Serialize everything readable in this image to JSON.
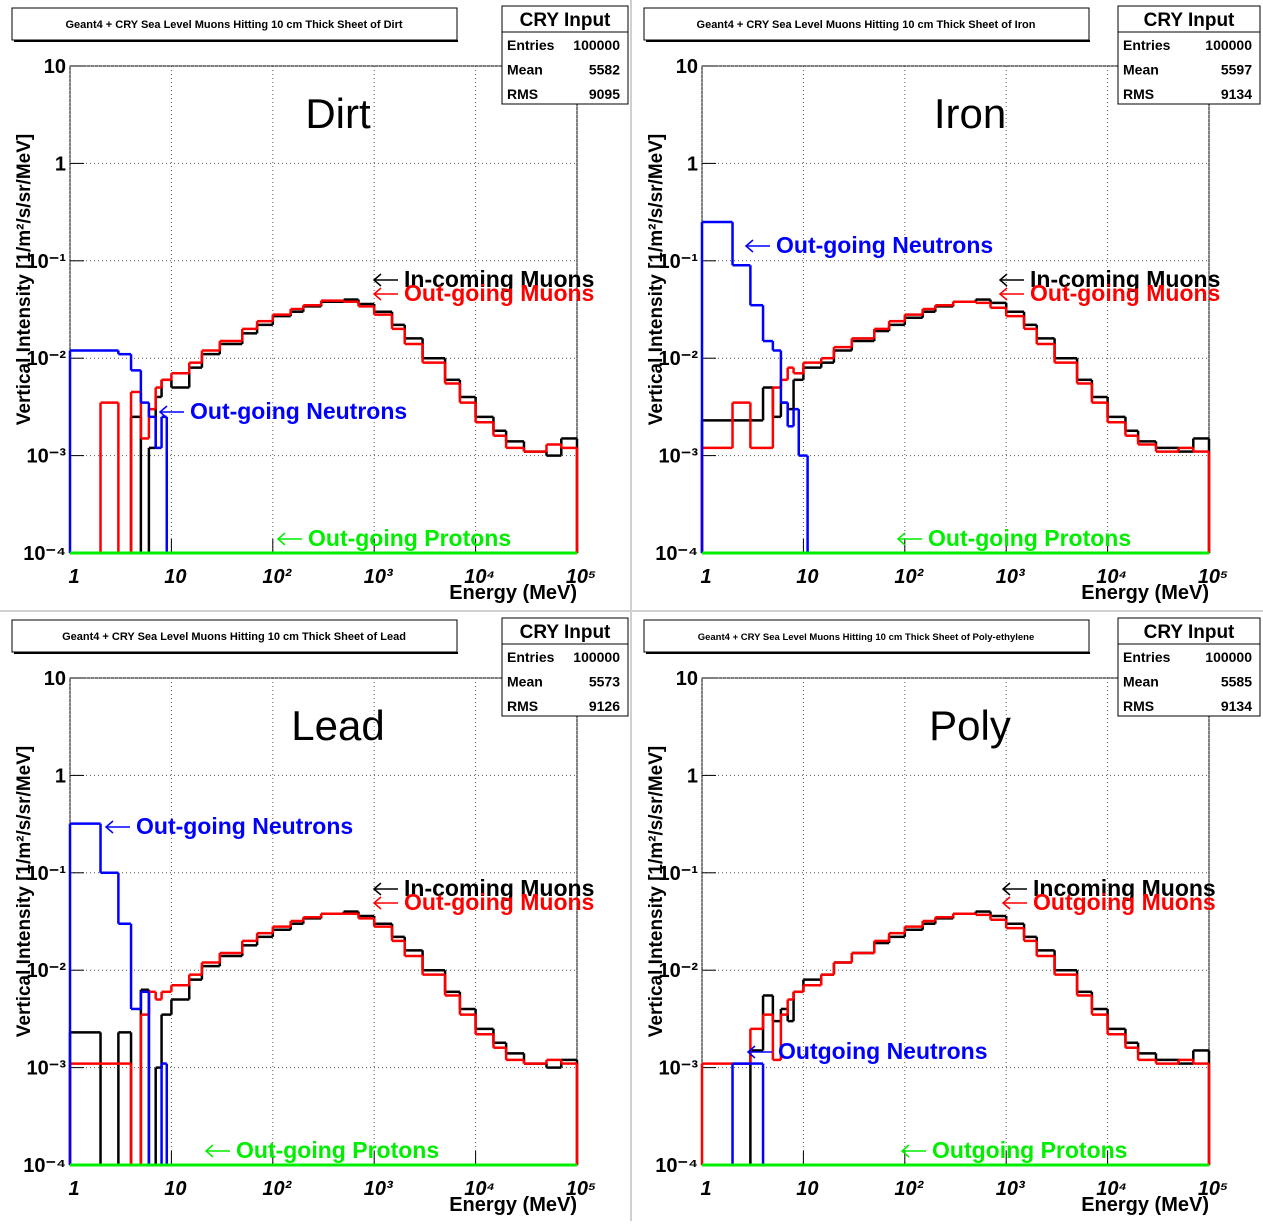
{
  "chart_data": [
    {
      "type": "histogram",
      "title": "Geant4 + CRY Sea Level Muons Hitting 10 cm Thick Sheet of Dirt",
      "label": "Dirt",
      "stats": {
        "title": "CRY Input",
        "rows": [
          {
            "label": "Entries",
            "value": 100000
          },
          {
            "label": "Mean",
            "value": 5582
          },
          {
            "label": "RMS",
            "value": 9095
          }
        ]
      },
      "x_label": "Energy (MeV)",
      "y_label": "Vertical Intensity [1/m²/s/sr/MeV]",
      "logx": true,
      "logy": true,
      "grid": true,
      "xlim": [
        1,
        100000
      ],
      "ylim": [
        0.0001,
        10
      ],
      "xticks": [
        1,
        10,
        {
          "value": 100,
          "label": "10²"
        },
        {
          "value": 1000,
          "label": "10³"
        },
        {
          "value": 10000,
          "label": "10⁴"
        },
        {
          "value": 100000,
          "label": "10⁵"
        }
      ],
      "yticks": [
        {
          "value": 0.0001,
          "label": "10⁻⁴"
        },
        {
          "value": 0.001,
          "label": "10⁻³"
        },
        {
          "value": 0.01,
          "label": "10⁻²"
        },
        {
          "value": 0.1,
          "label": "10⁻¹"
        },
        1,
        10
      ],
      "series": [
        {
          "name": "In-coming Muons",
          "color": "#000000",
          "bins": [
            1,
            2,
            3,
            4,
            5,
            6,
            7,
            8,
            10,
            15,
            20,
            30,
            50,
            70,
            100,
            150,
            200,
            300,
            500,
            700,
            1000,
            1500,
            2000,
            3000,
            5000,
            7000,
            10000,
            15000,
            20000,
            30000,
            50000,
            70000,
            100000
          ],
          "values": [
            0,
            0,
            0,
            0.0025,
            0,
            0.0012,
            0.004,
            0.006,
            0.005,
            0.008,
            0.011,
            0.014,
            0.018,
            0.022,
            0.027,
            0.03,
            0.034,
            0.038,
            0.04,
            0.036,
            0.03,
            0.022,
            0.016,
            0.01,
            0.006,
            0.004,
            0.0025,
            0.0018,
            0.0014,
            0.0011,
            0.001,
            0.0015
          ]
        },
        {
          "name": "Out-going Muons",
          "color": "#ff0000",
          "bins": [
            1,
            2,
            3,
            4,
            5,
            6,
            7,
            8,
            10,
            15,
            20,
            30,
            50,
            70,
            100,
            150,
            200,
            300,
            500,
            700,
            1000,
            1500,
            2000,
            3000,
            5000,
            7000,
            10000,
            15000,
            20000,
            30000,
            50000,
            70000,
            100000
          ],
          "values": [
            0,
            0.0035,
            0,
            0.0045,
            0.0015,
            0.003,
            0.005,
            0.006,
            0.007,
            0.009,
            0.012,
            0.015,
            0.02,
            0.024,
            0.028,
            0.032,
            0.035,
            0.039,
            0.038,
            0.034,
            0.028,
            0.02,
            0.014,
            0.009,
            0.0055,
            0.0035,
            0.0022,
            0.0016,
            0.0012,
            0.0011,
            0.0013,
            0.0012
          ]
        },
        {
          "name": "Out-going Neutrons",
          "color": "#0000ff",
          "bins": [
            1,
            2,
            3,
            4,
            5,
            6,
            7,
            8,
            9,
            10
          ],
          "values": [
            0.012,
            0.012,
            0.011,
            0.0075,
            0.0035,
            0.0025,
            0.0012,
            0.0025,
            0
          ]
        },
        {
          "name": "Out-going Protons",
          "color": "#00ee00",
          "bins": [
            1,
            100000
          ],
          "values": [
            0
          ]
        }
      ]
    },
    {
      "type": "histogram",
      "title": "Geant4 + CRY Sea Level Muons Hitting 10 cm Thick Sheet of Iron",
      "label": "Iron",
      "stats": {
        "title": "CRY Input",
        "rows": [
          {
            "label": "Entries",
            "value": 100000
          },
          {
            "label": "Mean",
            "value": 5597
          },
          {
            "label": "RMS",
            "value": 9134
          }
        ]
      },
      "x_label": "Energy (MeV)",
      "y_label": "Vertical Intensity [1/m²/s/sr/MeV]",
      "logx": true,
      "logy": true,
      "grid": true,
      "xlim": [
        1,
        100000
      ],
      "ylim": [
        0.0001,
        10
      ],
      "xticks": [
        1,
        10,
        {
          "value": 100,
          "label": "10²"
        },
        {
          "value": 1000,
          "label": "10³"
        },
        {
          "value": 10000,
          "label": "10⁴"
        },
        {
          "value": 100000,
          "label": "10⁵"
        }
      ],
      "yticks": [
        {
          "value": 0.0001,
          "label": "10⁻⁴"
        },
        {
          "value": 0.001,
          "label": "10⁻³"
        },
        {
          "value": 0.01,
          "label": "10⁻²"
        },
        {
          "value": 0.1,
          "label": "10⁻¹"
        },
        1,
        10
      ],
      "series": [
        {
          "name": "In-coming Muons",
          "color": "#000000",
          "bins": [
            1,
            2,
            3,
            4,
            5,
            6,
            7,
            8,
            10,
            15,
            20,
            30,
            50,
            70,
            100,
            150,
            200,
            300,
            500,
            700,
            1000,
            1500,
            2000,
            3000,
            5000,
            7000,
            10000,
            15000,
            20000,
            30000,
            50000,
            70000,
            100000
          ],
          "values": [
            0.0023,
            0.0023,
            0.0023,
            0.005,
            0.0025,
            0.0035,
            0.003,
            0.006,
            0.008,
            0.009,
            0.012,
            0.015,
            0.019,
            0.022,
            0.026,
            0.03,
            0.034,
            0.038,
            0.04,
            0.037,
            0.03,
            0.022,
            0.016,
            0.01,
            0.006,
            0.004,
            0.0025,
            0.0018,
            0.0014,
            0.0012,
            0.0011,
            0.0015
          ]
        },
        {
          "name": "Out-going Muons",
          "color": "#ff0000",
          "bins": [
            1,
            2,
            3,
            4,
            5,
            6,
            7,
            8,
            10,
            15,
            20,
            30,
            50,
            70,
            100,
            150,
            200,
            300,
            500,
            700,
            1000,
            1500,
            2000,
            3000,
            5000,
            7000,
            10000,
            15000,
            20000,
            30000,
            50000,
            70000,
            100000
          ],
          "values": [
            0.0012,
            0.0035,
            0.0012,
            0.0012,
            0.005,
            0.006,
            0.008,
            0.007,
            0.009,
            0.01,
            0.013,
            0.016,
            0.02,
            0.024,
            0.028,
            0.032,
            0.035,
            0.038,
            0.037,
            0.033,
            0.027,
            0.02,
            0.014,
            0.009,
            0.0055,
            0.0035,
            0.0022,
            0.0016,
            0.0013,
            0.0011,
            0.0012,
            0.0011
          ]
        },
        {
          "name": "Out-going Neutrons",
          "color": "#0000ff",
          "bins": [
            1,
            2,
            3,
            4,
            5,
            6,
            7,
            8,
            9,
            10,
            11
          ],
          "values": [
            0.25,
            0.09,
            0.035,
            0.015,
            0.012,
            0.0035,
            0.002,
            0.003,
            0.001,
            0.001
          ]
        },
        {
          "name": "Out-going Protons",
          "color": "#00ee00",
          "bins": [
            1,
            100000
          ],
          "values": [
            0
          ]
        }
      ]
    },
    {
      "type": "histogram",
      "title": "Geant4 + CRY Sea Level Muons Hitting 10 cm Thick Sheet of Lead",
      "label": "Lead",
      "stats": {
        "title": "CRY Input",
        "rows": [
          {
            "label": "Entries",
            "value": 100000
          },
          {
            "label": "Mean",
            "value": 5573
          },
          {
            "label": "RMS",
            "value": 9126
          }
        ]
      },
      "x_label": "Energy (MeV)",
      "y_label": "Vertical Intensity [1/m²/s/sr/MeV]",
      "logx": true,
      "logy": true,
      "grid": true,
      "xlim": [
        1,
        100000
      ],
      "ylim": [
        0.0001,
        10
      ],
      "xticks": [
        1,
        10,
        {
          "value": 100,
          "label": "10²"
        },
        {
          "value": 1000,
          "label": "10³"
        },
        {
          "value": 10000,
          "label": "10⁴"
        },
        {
          "value": 100000,
          "label": "10⁵"
        }
      ],
      "yticks": [
        {
          "value": 0.0001,
          "label": "10⁻⁴"
        },
        {
          "value": 0.001,
          "label": "10⁻³"
        },
        {
          "value": 0.01,
          "label": "10⁻²"
        },
        {
          "value": 0.1,
          "label": "10⁻¹"
        },
        1,
        10
      ],
      "series": [
        {
          "name": "In-coming Muons",
          "color": "#000000",
          "bins": [
            1,
            2,
            3,
            4,
            5,
            6,
            7,
            8,
            10,
            15,
            20,
            30,
            50,
            70,
            100,
            150,
            200,
            300,
            500,
            700,
            1000,
            1500,
            2000,
            3000,
            5000,
            7000,
            10000,
            15000,
            20000,
            30000,
            50000,
            70000,
            100000
          ],
          "values": [
            0.0023,
            0,
            0.0023,
            0,
            0.0063,
            0,
            0.001,
            0.0035,
            0.005,
            0.008,
            0.011,
            0.014,
            0.018,
            0.022,
            0.026,
            0.03,
            0.034,
            0.038,
            0.04,
            0.036,
            0.03,
            0.022,
            0.016,
            0.01,
            0.006,
            0.004,
            0.0025,
            0.0018,
            0.0014,
            0.0011,
            0.001,
            0.0012
          ]
        },
        {
          "name": "Out-going Muons",
          "color": "#ff0000",
          "bins": [
            1,
            2,
            3,
            4,
            5,
            6,
            7,
            8,
            10,
            15,
            20,
            30,
            50,
            70,
            100,
            150,
            200,
            300,
            500,
            700,
            1000,
            1500,
            2000,
            3000,
            5000,
            7000,
            10000,
            15000,
            20000,
            30000,
            50000,
            70000,
            100000
          ],
          "values": [
            0.0011,
            0.0011,
            0.0011,
            0,
            0.0035,
            0.006,
            0.005,
            0.006,
            0.007,
            0.009,
            0.012,
            0.015,
            0.02,
            0.024,
            0.028,
            0.032,
            0.035,
            0.038,
            0.038,
            0.034,
            0.028,
            0.02,
            0.014,
            0.009,
            0.0055,
            0.0035,
            0.0022,
            0.0016,
            0.0012,
            0.0011,
            0.0012,
            0.0011
          ]
        },
        {
          "name": "Out-going Neutrons",
          "color": "#0000ff",
          "bins": [
            1,
            2,
            3,
            4,
            5,
            6,
            7,
            8,
            9,
            10
          ],
          "values": [
            0.32,
            0.1,
            0.03,
            0.004,
            0.006,
            0,
            0,
            0.0011,
            0
          ]
        },
        {
          "name": "Out-going Protons",
          "color": "#00ee00",
          "bins": [
            1,
            100000
          ],
          "values": [
            0
          ]
        }
      ]
    },
    {
      "type": "histogram",
      "title": "Geant4 + CRY Sea Level Muons Hitting 10 cm Thick Sheet of Poly-ethylene",
      "label": "Poly",
      "stats": {
        "title": "CRY Input",
        "rows": [
          {
            "label": "Entries",
            "value": 100000
          },
          {
            "label": "Mean",
            "value": 5585
          },
          {
            "label": "RMS",
            "value": 9134
          }
        ]
      },
      "x_label": "Energy (MeV)",
      "y_label": "Vertical Intensity [1/m²/s/sr/MeV]",
      "logx": true,
      "logy": true,
      "grid": true,
      "xlim": [
        1,
        100000
      ],
      "ylim": [
        0.0001,
        10
      ],
      "xticks": [
        1,
        10,
        {
          "value": 100,
          "label": "10²"
        },
        {
          "value": 1000,
          "label": "10³"
        },
        {
          "value": 10000,
          "label": "10⁴"
        },
        {
          "value": 100000,
          "label": "10⁵"
        }
      ],
      "yticks": [
        {
          "value": 0.0001,
          "label": "10⁻⁴"
        },
        {
          "value": 0.001,
          "label": "10⁻³"
        },
        {
          "value": 0.01,
          "label": "10⁻²"
        },
        {
          "value": 0.1,
          "label": "10⁻¹"
        },
        1,
        10
      ],
      "series": [
        {
          "name": "Incoming Muons",
          "color": "#000000",
          "bins": [
            1,
            2,
            3,
            4,
            5,
            6,
            7,
            8,
            10,
            15,
            20,
            30,
            50,
            70,
            100,
            150,
            200,
            300,
            500,
            700,
            1000,
            1500,
            2000,
            3000,
            5000,
            7000,
            10000,
            15000,
            20000,
            30000,
            50000,
            70000,
            100000
          ],
          "values": [
            0,
            0,
            0.0015,
            0.0055,
            0.003,
            0.004,
            0.003,
            0.006,
            0.008,
            0.009,
            0.012,
            0.015,
            0.019,
            0.022,
            0.026,
            0.03,
            0.034,
            0.038,
            0.04,
            0.036,
            0.03,
            0.022,
            0.016,
            0.01,
            0.006,
            0.004,
            0.0025,
            0.0018,
            0.0014,
            0.0012,
            0.0011,
            0.0015
          ]
        },
        {
          "name": "Outgoing Muons",
          "color": "#ff0000",
          "bins": [
            1,
            2,
            3,
            4,
            5,
            6,
            7,
            8,
            10,
            15,
            20,
            30,
            50,
            70,
            100,
            150,
            200,
            300,
            500,
            700,
            1000,
            1500,
            2000,
            3000,
            5000,
            7000,
            10000,
            15000,
            20000,
            30000,
            50000,
            70000,
            100000
          ],
          "values": [
            0.0011,
            0.0011,
            0.0025,
            0.0035,
            0.0012,
            0.0035,
            0.005,
            0.006,
            0.007,
            0.009,
            0.012,
            0.015,
            0.02,
            0.024,
            0.028,
            0.032,
            0.035,
            0.038,
            0.037,
            0.033,
            0.027,
            0.02,
            0.014,
            0.009,
            0.0055,
            0.0035,
            0.0022,
            0.0016,
            0.0012,
            0.0011,
            0.0012,
            0.0011
          ]
        },
        {
          "name": "Outgoing Neutrons",
          "color": "#0000ff",
          "bins": [
            1,
            2,
            3,
            4
          ],
          "values": [
            0,
            0.0011,
            0.0011
          ]
        },
        {
          "name": "Outgoing Protons",
          "color": "#00ee00",
          "bins": [
            1,
            100000
          ],
          "values": [
            0
          ]
        }
      ]
    }
  ]
}
